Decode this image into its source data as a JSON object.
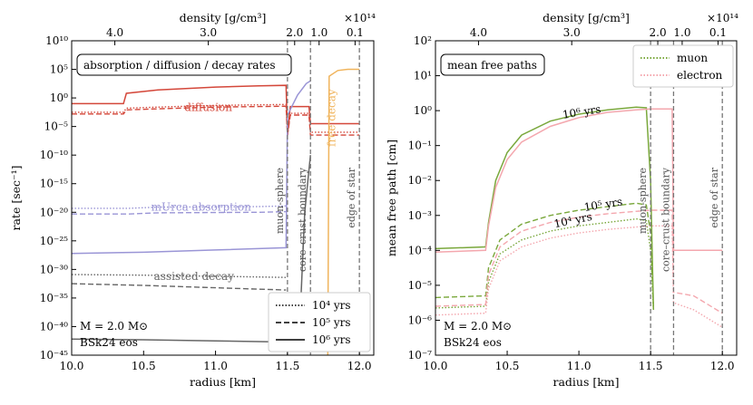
{
  "colors": {
    "muon": "#7aa83c",
    "electron": "#f4a7ae",
    "diffusion": "#d4473a",
    "absorption": "#9a95d6",
    "decay": "#666666",
    "free_decay": "#f0b45c",
    "vline": "#777777"
  },
  "chart_data": [
    {
      "type": "line",
      "log_y": true,
      "xlabel": "radius [km]",
      "ylabel": "rate [sec⁻¹]",
      "top_axis_label": "density [g/cm³]",
      "top_axis_exponent": "×10¹⁴",
      "xlim": [
        10.0,
        12.1
      ],
      "ylim_exponents": [
        -45,
        10
      ],
      "xticks": [
        {
          "value": 10.0,
          "label": "10.0"
        },
        {
          "value": 10.5,
          "label": "10.5"
        },
        {
          "value": 11.0,
          "label": "11.0"
        },
        {
          "value": 11.5,
          "label": "11.5"
        },
        {
          "value": 12.0,
          "label": "12.0"
        }
      ],
      "yticks": [
        {
          "exp": 10,
          "label": "10¹⁰"
        },
        {
          "exp": 5,
          "label": "10⁵"
        },
        {
          "exp": 0,
          "label": "10⁰"
        },
        {
          "exp": -5,
          "label": "10⁻⁵"
        },
        {
          "exp": -10,
          "label": "10⁻¹⁰"
        },
        {
          "exp": -15,
          "label": "10⁻¹⁵"
        },
        {
          "exp": -20,
          "label": "10⁻²⁰"
        },
        {
          "exp": -25,
          "label": "10⁻²⁵"
        },
        {
          "exp": -30,
          "label": "10⁻³⁰"
        },
        {
          "exp": -35,
          "label": "10⁻³⁵"
        },
        {
          "exp": -40,
          "label": "10⁻⁴⁰"
        },
        {
          "exp": -45,
          "label": "10⁻⁴⁵"
        }
      ],
      "top_ticks": [
        {
          "radius": 10.3,
          "label": "4.0"
        },
        {
          "radius": 10.95,
          "label": "3.0"
        },
        {
          "radius": 11.55,
          "label": "2.0"
        },
        {
          "radius": 11.72,
          "label": "1.0"
        },
        {
          "radius": 11.97,
          "label": "0.1"
        }
      ],
      "title_box": "absorption / diffusion / decay rates",
      "mass_label": "M = 2.0 M⊙",
      "eos_label": "BSk24 eos",
      "vlines": [
        {
          "x": 11.5,
          "label": "muon-sphere"
        },
        {
          "x": 11.66,
          "label": "core–crust boundary"
        },
        {
          "x": 12.0,
          "label": "edge of star"
        }
      ],
      "annotations": [
        {
          "text": "diffusion",
          "x": 10.95,
          "y_exp": -1.7,
          "color_key": "diffusion"
        },
        {
          "text": "mUrca absorption",
          "x": 10.9,
          "y_exp": -19.2,
          "color_key": "absorption"
        },
        {
          "text": "assisted decay",
          "x": 10.85,
          "y_exp": -31.3,
          "color_key": "decay"
        },
        {
          "text": "free decay",
          "x": 11.81,
          "y_exp": -3.5,
          "color_key": "free_decay",
          "rotate": -90
        }
      ],
      "legend": {
        "position": "lower-right",
        "entries": [
          {
            "label": "10⁴ yrs",
            "style": "dotted"
          },
          {
            "label": "10⁵ yrs",
            "style": "dashed"
          },
          {
            "label": "10⁶ yrs",
            "style": "solid"
          }
        ]
      },
      "series": [
        {
          "style": "solid",
          "color_key": "diffusion",
          "points": [
            [
              10.0,
              -1.0
            ],
            [
              10.36,
              -1.0
            ],
            [
              10.38,
              0.8
            ],
            [
              10.6,
              1.4
            ],
            [
              11.0,
              1.9
            ],
            [
              11.3,
              2.1
            ],
            [
              11.49,
              2.2
            ],
            [
              11.5,
              -6.5
            ],
            [
              11.52,
              -1.5
            ],
            [
              11.65,
              -1.5
            ],
            [
              11.66,
              -4.5
            ],
            [
              12.0,
              -4.5
            ]
          ]
        },
        {
          "style": "dashed",
          "color_key": "diffusion",
          "points": [
            [
              10.0,
              -2.8
            ],
            [
              10.36,
              -2.8
            ],
            [
              10.38,
              -2.1
            ],
            [
              10.6,
              -1.9
            ],
            [
              11.0,
              -1.6
            ],
            [
              11.3,
              -1.5
            ],
            [
              11.49,
              -1.45
            ],
            [
              11.5,
              -6.5
            ],
            [
              11.52,
              -3.0
            ],
            [
              11.65,
              -3.0
            ],
            [
              11.66,
              -6.5
            ],
            [
              12.0,
              -6.5
            ]
          ]
        },
        {
          "style": "dotted",
          "color_key": "diffusion",
          "points": [
            [
              10.0,
              -2.5
            ],
            [
              10.36,
              -2.5
            ],
            [
              10.38,
              -1.8
            ],
            [
              10.6,
              -1.6
            ],
            [
              11.0,
              -1.3
            ],
            [
              11.3,
              -1.2
            ],
            [
              11.49,
              -1.15
            ],
            [
              11.5,
              -6.5
            ],
            [
              11.52,
              -2.7
            ],
            [
              11.65,
              -2.7
            ],
            [
              11.66,
              -6.0
            ],
            [
              12.0,
              -6.0
            ]
          ]
        },
        {
          "style": "solid",
          "color_key": "absorption",
          "points": [
            [
              10.0,
              -27.2
            ],
            [
              10.5,
              -27.0
            ],
            [
              11.0,
              -26.6
            ],
            [
              11.49,
              -26.2
            ],
            [
              11.5,
              -3.0
            ],
            [
              11.57,
              0.5
            ],
            [
              11.63,
              2.5
            ],
            [
              11.66,
              3.0
            ]
          ]
        },
        {
          "style": "dashed",
          "color_key": "absorption",
          "points": [
            [
              10.0,
              -20.3
            ],
            [
              10.4,
              -20.3
            ],
            [
              10.6,
              -20.1
            ],
            [
              11.3,
              -20.0
            ],
            [
              11.49,
              -19.9
            ]
          ]
        },
        {
          "style": "dotted",
          "color_key": "absorption",
          "points": [
            [
              10.0,
              -19.3
            ],
            [
              10.4,
              -19.3
            ],
            [
              10.6,
              -19.1
            ],
            [
              11.3,
              -19.0
            ],
            [
              11.49,
              -18.9
            ]
          ]
        },
        {
          "style": "solid",
          "color_key": "decay",
          "points": [
            [
              10.0,
              -42.2
            ],
            [
              10.5,
              -42.3
            ],
            [
              11.0,
              -42.5
            ],
            [
              11.49,
              -42.7
            ],
            [
              11.5,
              -43.0
            ],
            [
              11.58,
              -43.0
            ],
            [
              11.62,
              -20.0
            ],
            [
              11.66,
              -10.0
            ]
          ]
        },
        {
          "style": "dashed",
          "color_key": "decay",
          "points": [
            [
              10.0,
              -32.5
            ],
            [
              10.5,
              -32.8
            ],
            [
              11.0,
              -33.2
            ],
            [
              11.49,
              -33.6
            ]
          ]
        },
        {
          "style": "dotted",
          "color_key": "decay",
          "points": [
            [
              10.0,
              -30.9
            ],
            [
              10.5,
              -31.0
            ],
            [
              11.0,
              -31.2
            ],
            [
              11.49,
              -31.4
            ]
          ]
        },
        {
          "style": "solid",
          "color_key": "free_decay",
          "points": [
            [
              11.78,
              -45.0
            ],
            [
              11.79,
              3.8
            ],
            [
              11.85,
              4.8
            ],
            [
              11.92,
              5.0
            ],
            [
              12.0,
              5.0
            ]
          ]
        }
      ]
    },
    {
      "type": "line",
      "log_y": true,
      "xlabel": "radius [km]",
      "ylabel": "mean free path [cm]",
      "top_axis_label": "density [g/cm³]",
      "top_axis_exponent": "×10¹⁴",
      "xlim": [
        10.0,
        12.1
      ],
      "ylim_exponents": [
        -7,
        2
      ],
      "xticks": [
        {
          "value": 10.0,
          "label": "10.0"
        },
        {
          "value": 10.5,
          "label": "10.5"
        },
        {
          "value": 11.0,
          "label": "11.0"
        },
        {
          "value": 11.5,
          "label": "11.5"
        },
        {
          "value": 12.0,
          "label": "12.0"
        }
      ],
      "yticks": [
        {
          "exp": 2,
          "label": "10²"
        },
        {
          "exp": 1,
          "label": "10¹"
        },
        {
          "exp": 0,
          "label": "10⁰"
        },
        {
          "exp": -1,
          "label": "10⁻¹"
        },
        {
          "exp": -2,
          "label": "10⁻²"
        },
        {
          "exp": -3,
          "label": "10⁻³"
        },
        {
          "exp": -4,
          "label": "10⁻⁴"
        },
        {
          "exp": -5,
          "label": "10⁻⁵"
        },
        {
          "exp": -6,
          "label": "10⁻⁶"
        },
        {
          "exp": -7,
          "label": "10⁻⁷"
        }
      ],
      "top_ticks": [
        {
          "radius": 10.3,
          "label": "4.0"
        },
        {
          "radius": 10.95,
          "label": "3.0"
        },
        {
          "radius": 11.55,
          "label": "2.0"
        },
        {
          "radius": 11.72,
          "label": "1.0"
        },
        {
          "radius": 11.97,
          "label": "0.1"
        }
      ],
      "title_box": "mean free paths",
      "mass_label": "M = 2.0 M⊙",
      "eos_label": "BSk24 eos",
      "vlines": [
        {
          "x": 11.5,
          "label": "muon-sphere"
        },
        {
          "x": 11.66,
          "label": "core–crust boundary"
        },
        {
          "x": 12.0,
          "label": "edge of star"
        }
      ],
      "annotations": [
        {
          "text": "10⁶ yrs",
          "x": 11.02,
          "y_exp": -0.05,
          "color_key": "text",
          "rotate": -9
        },
        {
          "text": "10⁵ yrs",
          "x": 11.17,
          "y_exp": -2.7,
          "color_key": "text",
          "rotate": -9
        },
        {
          "text": "10⁴ yrs",
          "x": 10.96,
          "y_exp": -3.15,
          "color_key": "text",
          "rotate": -12
        }
      ],
      "legend": {
        "position": "upper-right",
        "entries": [
          {
            "label": "muon",
            "color_key": "muon",
            "style": "dotted"
          },
          {
            "label": "electron",
            "color_key": "electron",
            "style": "dotted"
          }
        ]
      },
      "series": [
        {
          "style": "solid",
          "color_key": "muon",
          "points": [
            [
              10.0,
              -3.95
            ],
            [
              10.35,
              -3.9
            ],
            [
              10.37,
              -3.2
            ],
            [
              10.42,
              -2.0
            ],
            [
              10.5,
              -1.2
            ],
            [
              10.6,
              -0.7
            ],
            [
              10.8,
              -0.3
            ],
            [
              11.0,
              -0.1
            ],
            [
              11.2,
              0.02
            ],
            [
              11.4,
              0.1
            ],
            [
              11.47,
              0.08
            ],
            [
              11.5,
              -2.0
            ],
            [
              11.52,
              -5.7
            ]
          ]
        },
        {
          "style": "dashed",
          "color_key": "muon",
          "points": [
            [
              10.0,
              -5.35
            ],
            [
              10.35,
              -5.3
            ],
            [
              10.37,
              -4.5
            ],
            [
              10.45,
              -3.7
            ],
            [
              10.6,
              -3.25
            ],
            [
              10.8,
              -3.0
            ],
            [
              11.0,
              -2.85
            ],
            [
              11.2,
              -2.75
            ],
            [
              11.4,
              -2.65
            ],
            [
              11.47,
              -2.7
            ],
            [
              11.5,
              -3.5
            ],
            [
              11.52,
              -5.7
            ]
          ]
        },
        {
          "style": "dotted",
          "color_key": "muon",
          "points": [
            [
              10.0,
              -5.65
            ],
            [
              10.35,
              -5.6
            ],
            [
              10.37,
              -4.9
            ],
            [
              10.45,
              -4.1
            ],
            [
              10.6,
              -3.7
            ],
            [
              10.8,
              -3.45
            ],
            [
              11.0,
              -3.3
            ],
            [
              11.2,
              -3.2
            ],
            [
              11.4,
              -3.1
            ],
            [
              11.47,
              -3.15
            ],
            [
              11.5,
              -4.0
            ],
            [
              11.52,
              -5.7
            ]
          ]
        },
        {
          "style": "solid",
          "color_key": "electron",
          "points": [
            [
              10.0,
              -4.05
            ],
            [
              10.35,
              -4.0
            ],
            [
              10.37,
              -3.3
            ],
            [
              10.42,
              -2.2
            ],
            [
              10.5,
              -1.4
            ],
            [
              10.6,
              -0.9
            ],
            [
              10.8,
              -0.45
            ],
            [
              11.0,
              -0.2
            ],
            [
              11.2,
              -0.05
            ],
            [
              11.4,
              0.02
            ],
            [
              11.5,
              0.05
            ],
            [
              11.55,
              0.05
            ],
            [
              11.65,
              0.05
            ],
            [
              11.66,
              -4.0
            ],
            [
              12.0,
              -4.0
            ]
          ]
        },
        {
          "style": "dashed",
          "color_key": "electron",
          "points": [
            [
              10.0,
              -5.6
            ],
            [
              10.35,
              -5.55
            ],
            [
              10.37,
              -4.7
            ],
            [
              10.45,
              -3.9
            ],
            [
              10.6,
              -3.45
            ],
            [
              10.8,
              -3.2
            ],
            [
              11.0,
              -3.05
            ],
            [
              11.2,
              -2.95
            ],
            [
              11.5,
              -2.85
            ],
            [
              11.65,
              -2.85
            ],
            [
              11.66,
              -5.2
            ],
            [
              11.8,
              -5.3
            ],
            [
              12.0,
              -5.8
            ]
          ]
        },
        {
          "style": "dotted",
          "color_key": "electron",
          "points": [
            [
              10.0,
              -5.85
            ],
            [
              10.35,
              -5.8
            ],
            [
              10.37,
              -5.1
            ],
            [
              10.45,
              -4.3
            ],
            [
              10.6,
              -3.9
            ],
            [
              10.8,
              -3.65
            ],
            [
              11.0,
              -3.5
            ],
            [
              11.2,
              -3.4
            ],
            [
              11.5,
              -3.3
            ],
            [
              11.65,
              -3.3
            ],
            [
              11.66,
              -5.5
            ],
            [
              11.8,
              -5.7
            ],
            [
              12.0,
              -6.2
            ]
          ]
        }
      ]
    }
  ]
}
